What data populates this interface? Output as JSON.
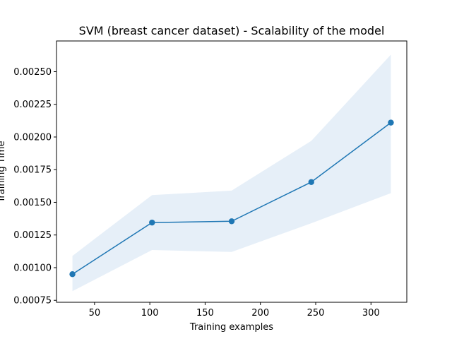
{
  "chart_data": {
    "type": "line",
    "title": "SVM (breast cancer dataset) - Scalability of the model",
    "xlabel": "Training examples",
    "ylabel": "Training Time",
    "xlim": [
      15.6,
      332.4
    ],
    "ylim": [
      0.000735,
      0.002735
    ],
    "x_ticks": [
      {
        "value": 50,
        "label": "50"
      },
      {
        "value": 100,
        "label": "100"
      },
      {
        "value": 150,
        "label": "150"
      },
      {
        "value": 200,
        "label": "200"
      },
      {
        "value": 250,
        "label": "250"
      },
      {
        "value": 300,
        "label": "300"
      }
    ],
    "y_ticks": [
      {
        "value": 0.00075,
        "label": "0.00075"
      },
      {
        "value": 0.001,
        "label": "0.00100"
      },
      {
        "value": 0.00125,
        "label": "0.00125"
      },
      {
        "value": 0.0015,
        "label": "0.00150"
      },
      {
        "value": 0.00175,
        "label": "0.00175"
      },
      {
        "value": 0.002,
        "label": "0.00200"
      },
      {
        "value": 0.00225,
        "label": "0.00225"
      },
      {
        "value": 0.0025,
        "label": "0.00250"
      }
    ],
    "x": [
      30,
      102,
      174,
      246,
      318
    ],
    "series": [
      {
        "values": [
          0.00095,
          0.001345,
          0.001355,
          0.001655,
          0.00211
        ],
        "lower": [
          0.00082,
          0.001135,
          0.00112,
          0.00134,
          0.00157
        ],
        "upper": [
          0.00109,
          0.001555,
          0.00159,
          0.00197,
          0.00263
        ],
        "color": "#1f77b4",
        "band_color": "#e6eff8",
        "marker": "circle"
      }
    ],
    "grid": false,
    "legend": "none"
  }
}
